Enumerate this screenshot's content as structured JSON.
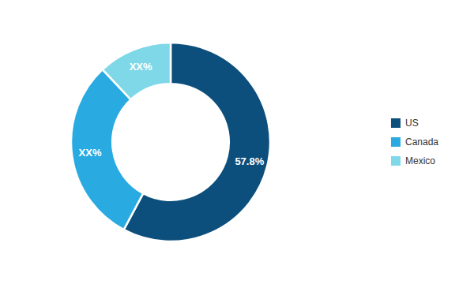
{
  "chart_data": {
    "type": "pie",
    "categories": [
      "US",
      "Canada",
      "Mexico"
    ],
    "values": [
      57.8,
      30.2,
      12.0
    ],
    "value_labels": [
      "57.8%",
      "XX%",
      "XX%"
    ],
    "colors": [
      "#0d4f7c",
      "#29abe2",
      "#7fd8e8"
    ],
    "data_labels": true,
    "legend": "right"
  }
}
